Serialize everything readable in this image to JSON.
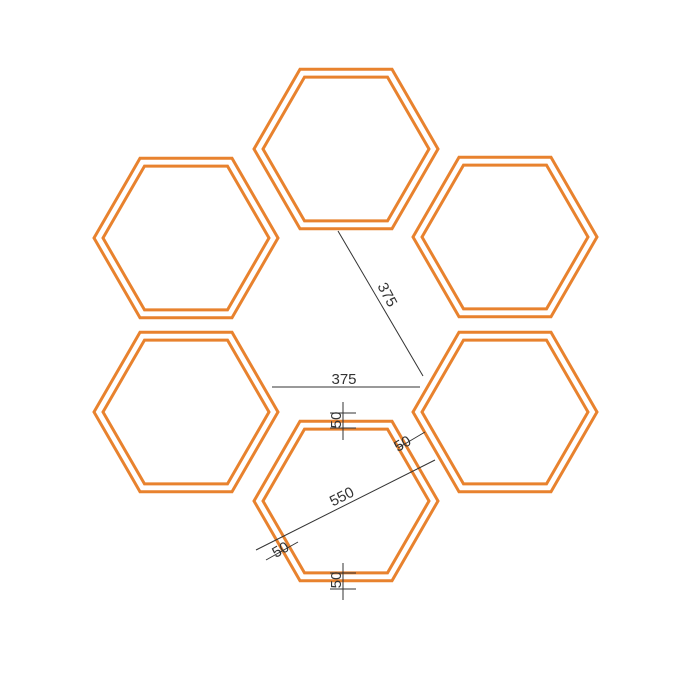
{
  "diagram": {
    "colors": {
      "hex_stroke": "#E8822E",
      "dim_line": "#333333",
      "background": "#ffffff"
    },
    "hexagon_cells": [
      "top",
      "upper-left",
      "upper-right",
      "lower-left",
      "lower-right",
      "bottom"
    ],
    "dimensions": {
      "inner_span_diagonal": "375",
      "inner_span_horizontal": "375",
      "frame_width_vertical_top": "50",
      "frame_width_right": "50",
      "outer_width": "550",
      "frame_width_left": "50",
      "frame_width_vertical_bottom": "50"
    }
  }
}
